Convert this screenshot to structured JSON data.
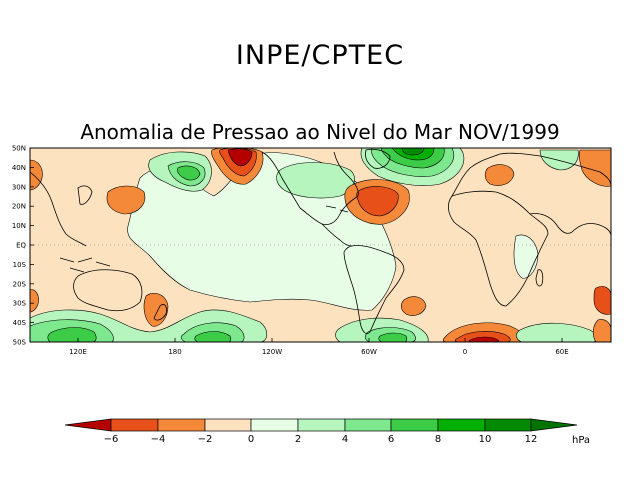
{
  "header": {
    "organization": "INPE/CPTEC",
    "title": "Anomalia de Pressao ao Nivel do Mar NOV/1999"
  },
  "map": {
    "lat_labels": [
      "50N",
      "40N",
      "30N",
      "20N",
      "10N",
      "EQ",
      "10S",
      "20S",
      "30S",
      "40S",
      "50S"
    ],
    "lon_labels": [
      "120E",
      "180",
      "120W",
      "60W",
      "0",
      "60E"
    ],
    "colors": {
      "neg_6": "#b40000",
      "neg_4": "#e8501a",
      "neg_2": "#f5893a",
      "neg_0": "#fde2c0",
      "pos_0": "#e8fde6",
      "pos_2": "#b6f5be",
      "pos_4": "#7ee88e",
      "pos_6": "#3ccc48",
      "pos_8": "#00b000",
      "pos_10": "#008a00"
    }
  },
  "colorbar": {
    "tick_labels": [
      "−6",
      "−4",
      "−2",
      "0",
      "2",
      "4",
      "6",
      "8",
      "10",
      "12"
    ],
    "unit": "hPa",
    "colors": [
      "#b40000",
      "#e8501a",
      "#f5893a",
      "#fde2c0",
      "#e8fde6",
      "#b6f5be",
      "#7ee88e",
      "#3ccc48",
      "#00b000",
      "#008a00",
      "#007400"
    ]
  }
}
